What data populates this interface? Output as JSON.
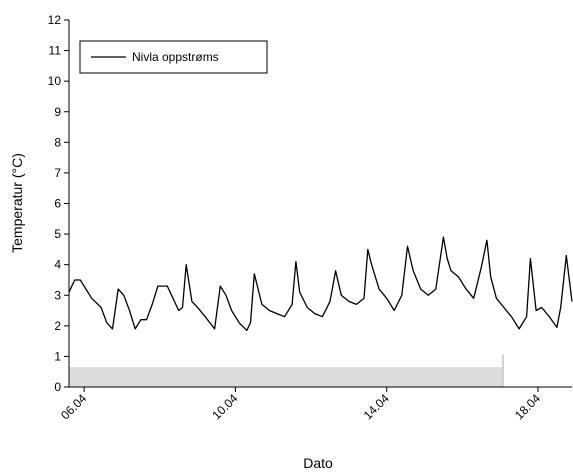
{
  "chart_data": {
    "type": "line",
    "title": "",
    "xlabel": "Dato",
    "ylabel": "Temperatur (°C)",
    "ylim": [
      0,
      12
    ],
    "xlim": [
      5.6,
      18.9
    ],
    "yticks": [
      0,
      1,
      2,
      3,
      4,
      5,
      6,
      7,
      8,
      9,
      10,
      11,
      12
    ],
    "xticks": [
      {
        "value": 6,
        "label": "06.04"
      },
      {
        "value": 10,
        "label": "10.04"
      },
      {
        "value": 14,
        "label": "14.04"
      },
      {
        "value": 18,
        "label": "18.04"
      }
    ],
    "grid": false,
    "legend": {
      "position": "top-left",
      "entries": [
        "Nivla oppstrøms"
      ]
    },
    "series": [
      {
        "name": "Nivla oppstrøms",
        "color": "#000000",
        "x": [
          5.6,
          5.75,
          5.9,
          6.0,
          6.2,
          6.45,
          6.6,
          6.75,
          6.9,
          7.05,
          7.2,
          7.35,
          7.5,
          7.65,
          7.8,
          7.95,
          8.2,
          8.35,
          8.5,
          8.6,
          8.7,
          8.85,
          9.0,
          9.2,
          9.45,
          9.6,
          9.75,
          9.9,
          10.1,
          10.3,
          10.4,
          10.5,
          10.7,
          10.9,
          11.1,
          11.3,
          11.5,
          11.6,
          11.7,
          11.9,
          12.1,
          12.3,
          12.5,
          12.65,
          12.8,
          13.0,
          13.2,
          13.4,
          13.5,
          13.6,
          13.8,
          14.0,
          14.2,
          14.4,
          14.55,
          14.7,
          14.9,
          15.1,
          15.3,
          15.5,
          15.6,
          15.7,
          15.9,
          16.1,
          16.3,
          16.5,
          16.65,
          16.75,
          16.9,
          17.1,
          17.3,
          17.5,
          17.7,
          17.8,
          17.95,
          18.1,
          18.3,
          18.5,
          18.6,
          18.75,
          18.9
        ],
        "values": [
          3.1,
          3.5,
          3.5,
          3.3,
          2.9,
          2.6,
          2.1,
          1.9,
          3.2,
          3.0,
          2.5,
          1.9,
          2.2,
          2.2,
          2.7,
          3.3,
          3.3,
          2.9,
          2.5,
          2.6,
          4.0,
          2.8,
          2.6,
          2.3,
          1.9,
          3.3,
          3.0,
          2.5,
          2.1,
          1.85,
          2.1,
          3.7,
          2.7,
          2.5,
          2.4,
          2.3,
          2.7,
          4.1,
          3.1,
          2.6,
          2.4,
          2.3,
          2.8,
          3.8,
          3.0,
          2.8,
          2.7,
          2.9,
          4.5,
          4.0,
          3.2,
          2.9,
          2.5,
          3.0,
          4.6,
          3.8,
          3.2,
          3.0,
          3.2,
          4.9,
          4.2,
          3.8,
          3.6,
          3.2,
          2.9,
          3.9,
          4.8,
          3.6,
          2.9,
          2.6,
          2.3,
          1.9,
          2.3,
          4.2,
          2.5,
          2.6,
          2.3,
          1.95,
          2.6,
          4.3,
          2.8
        ]
      }
    ],
    "bar": {
      "x_start": 5.6,
      "x_end": 17.1,
      "values": [
        0.65
      ],
      "color": "#dcdcdc"
    }
  }
}
